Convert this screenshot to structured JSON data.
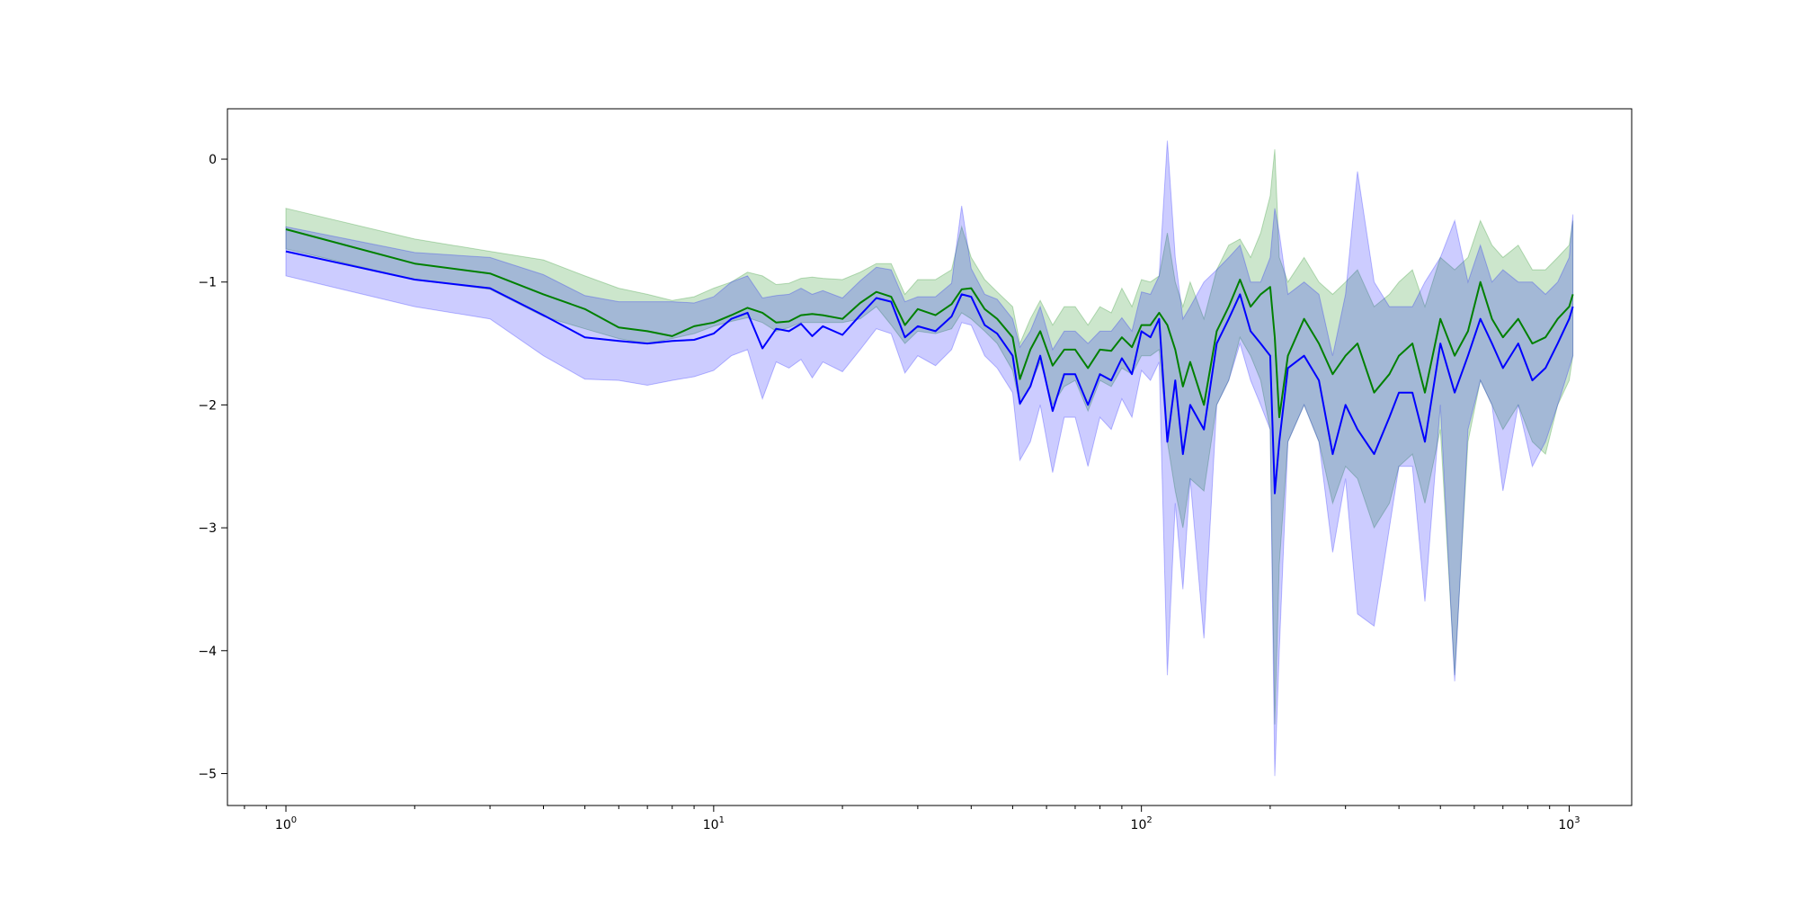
{
  "chart_data": {
    "type": "line",
    "title": "",
    "xlabel": "",
    "ylabel": "",
    "x_scale": "log",
    "xlim": [
      0.73,
      1400
    ],
    "ylim": [
      -5.26,
      0.41
    ],
    "grid": false,
    "legend": "none",
    "x_ticks": [
      {
        "value": 1,
        "mantissa": "10",
        "exponent": "0"
      },
      {
        "value": 10,
        "mantissa": "10",
        "exponent": "1"
      },
      {
        "value": 100,
        "mantissa": "10",
        "exponent": "2"
      },
      {
        "value": 1000,
        "mantissa": "10",
        "exponent": "3"
      }
    ],
    "y_ticks": [
      {
        "value": 0,
        "label": "0"
      },
      {
        "value": -1,
        "label": "−1"
      },
      {
        "value": -2,
        "label": "−2"
      },
      {
        "value": -3,
        "label": "−3"
      },
      {
        "value": -4,
        "label": "−4"
      },
      {
        "value": -5,
        "label": "−5"
      }
    ],
    "series": [
      {
        "color": "#008000",
        "band_color": "#008000",
        "band_opacity": 0.2,
        "x": [
          1,
          2,
          3,
          4,
          5,
          6,
          7,
          8,
          9,
          10,
          11,
          12,
          13,
          14,
          15,
          16,
          17,
          18,
          20,
          22,
          24,
          26,
          28,
          30,
          33,
          36,
          38,
          40,
          43,
          46,
          50,
          52,
          55,
          58,
          62,
          66,
          70,
          75,
          80,
          85,
          90,
          95,
          100,
          105,
          110,
          115,
          120,
          125,
          130,
          140,
          150,
          160,
          170,
          180,
          190,
          200,
          205,
          210,
          220,
          240,
          260,
          280,
          300,
          320,
          350,
          380,
          400,
          430,
          460,
          500,
          540,
          580,
          620,
          660,
          700,
          760,
          820,
          880,
          940,
          1000,
          1020
        ],
        "values": [
          -0.57,
          -0.85,
          -0.93,
          -1.1,
          -1.22,
          -1.37,
          -1.4,
          -1.44,
          -1.36,
          -1.33,
          -1.27,
          -1.21,
          -1.25,
          -1.33,
          -1.32,
          -1.27,
          -1.26,
          -1.27,
          -1.3,
          -1.17,
          -1.08,
          -1.12,
          -1.35,
          -1.22,
          -1.27,
          -1.18,
          -1.06,
          -1.05,
          -1.22,
          -1.3,
          -1.45,
          -1.79,
          -1.55,
          -1.4,
          -1.68,
          -1.55,
          -1.55,
          -1.7,
          -1.55,
          -1.56,
          -1.45,
          -1.53,
          -1.35,
          -1.35,
          -1.25,
          -1.35,
          -1.55,
          -1.85,
          -1.65,
          -2.0,
          -1.4,
          -1.2,
          -0.98,
          -1.2,
          -1.1,
          -1.04,
          -1.45,
          -2.1,
          -1.6,
          -1.3,
          -1.5,
          -1.75,
          -1.6,
          -1.5,
          -1.9,
          -1.75,
          -1.6,
          -1.5,
          -1.9,
          -1.3,
          -1.6,
          -1.4,
          -1.0,
          -1.3,
          -1.45,
          -1.3,
          -1.5,
          -1.45,
          -1.3,
          -1.2,
          -1.1
        ],
        "lower": [
          -0.73,
          -0.98,
          -1.06,
          -1.28,
          -1.38,
          -1.46,
          -1.5,
          -1.46,
          -1.42,
          -1.36,
          -1.32,
          -1.29,
          -1.33,
          -1.4,
          -1.37,
          -1.33,
          -1.33,
          -1.33,
          -1.33,
          -1.3,
          -1.2,
          -1.35,
          -1.5,
          -1.4,
          -1.42,
          -1.38,
          -1.25,
          -1.3,
          -1.4,
          -1.5,
          -1.72,
          -2.0,
          -1.84,
          -1.65,
          -2.0,
          -1.85,
          -1.8,
          -2.05,
          -1.8,
          -1.85,
          -1.7,
          -1.75,
          -1.6,
          -1.6,
          -1.55,
          -2.3,
          -2.7,
          -3.0,
          -2.6,
          -2.7,
          -2.0,
          -1.8,
          -1.45,
          -1.6,
          -1.8,
          -2.2,
          -4.6,
          -3.3,
          -2.3,
          -2.0,
          -2.3,
          -2.8,
          -2.5,
          -2.6,
          -3.0,
          -2.8,
          -2.5,
          -2.4,
          -2.8,
          -2.2,
          -4.2,
          -2.3,
          -1.8,
          -2.0,
          -2.2,
          -2.0,
          -2.3,
          -2.4,
          -2.0,
          -1.8,
          -1.6
        ],
        "upper": [
          -0.4,
          -0.65,
          -0.75,
          -0.82,
          -0.95,
          -1.05,
          -1.1,
          -1.15,
          -1.12,
          -1.05,
          -1.0,
          -0.92,
          -0.95,
          -1.02,
          -1.01,
          -0.97,
          -0.96,
          -0.97,
          -0.98,
          -0.92,
          -0.85,
          -0.85,
          -1.1,
          -0.98,
          -0.98,
          -0.9,
          -0.55,
          -0.8,
          -0.98,
          -1.08,
          -1.2,
          -1.5,
          -1.3,
          -1.15,
          -1.35,
          -1.2,
          -1.2,
          -1.35,
          -1.2,
          -1.25,
          -1.05,
          -1.2,
          -0.98,
          -1.0,
          -0.95,
          -0.6,
          -1.0,
          -1.2,
          -1.0,
          -1.3,
          -0.9,
          -0.7,
          -0.65,
          -0.8,
          -0.6,
          -0.3,
          0.08,
          -0.8,
          -1.0,
          -0.8,
          -1.0,
          -1.1,
          -1.0,
          -0.9,
          -1.2,
          -1.1,
          -1.0,
          -0.9,
          -1.2,
          -0.8,
          -0.9,
          -0.8,
          -0.5,
          -0.7,
          -0.8,
          -0.7,
          -0.9,
          -0.9,
          -0.8,
          -0.7,
          -0.5
        ]
      },
      {
        "color": "#0000ff",
        "band_color": "#0000ff",
        "band_opacity": 0.2,
        "x": [
          1,
          2,
          3,
          4,
          5,
          6,
          7,
          8,
          9,
          10,
          11,
          12,
          13,
          14,
          15,
          16,
          17,
          18,
          20,
          22,
          24,
          26,
          28,
          30,
          33,
          36,
          38,
          40,
          43,
          46,
          50,
          52,
          55,
          58,
          62,
          66,
          70,
          75,
          80,
          85,
          90,
          95,
          100,
          105,
          110,
          115,
          120,
          125,
          130,
          140,
          150,
          160,
          170,
          180,
          190,
          200,
          205,
          210,
          220,
          240,
          260,
          280,
          300,
          320,
          350,
          380,
          400,
          430,
          460,
          500,
          540,
          580,
          620,
          660,
          700,
          760,
          820,
          880,
          940,
          1000,
          1020
        ],
        "values": [
          -0.75,
          -0.98,
          -1.05,
          -1.27,
          -1.45,
          -1.48,
          -1.5,
          -1.48,
          -1.47,
          -1.42,
          -1.3,
          -1.25,
          -1.54,
          -1.38,
          -1.4,
          -1.34,
          -1.44,
          -1.36,
          -1.43,
          -1.27,
          -1.13,
          -1.16,
          -1.45,
          -1.36,
          -1.4,
          -1.28,
          -1.1,
          -1.12,
          -1.35,
          -1.42,
          -1.6,
          -1.99,
          -1.85,
          -1.6,
          -2.05,
          -1.75,
          -1.75,
          -2.0,
          -1.75,
          -1.8,
          -1.62,
          -1.75,
          -1.4,
          -1.45,
          -1.3,
          -2.3,
          -1.8,
          -2.4,
          -2.0,
          -2.2,
          -1.5,
          -1.3,
          -1.1,
          -1.4,
          -1.5,
          -1.6,
          -2.72,
          -2.3,
          -1.7,
          -1.6,
          -1.8,
          -2.4,
          -2.0,
          -2.2,
          -2.4,
          -2.1,
          -1.9,
          -1.9,
          -2.3,
          -1.5,
          -1.9,
          -1.6,
          -1.3,
          -1.5,
          -1.7,
          -1.5,
          -1.8,
          -1.7,
          -1.5,
          -1.3,
          -1.2
        ],
        "lower": [
          -0.95,
          -1.2,
          -1.3,
          -1.6,
          -1.79,
          -1.8,
          -1.84,
          -1.8,
          -1.77,
          -1.72,
          -1.6,
          -1.55,
          -1.95,
          -1.65,
          -1.7,
          -1.63,
          -1.78,
          -1.65,
          -1.73,
          -1.55,
          -1.38,
          -1.42,
          -1.74,
          -1.6,
          -1.68,
          -1.55,
          -1.33,
          -1.35,
          -1.6,
          -1.7,
          -1.9,
          -2.45,
          -2.3,
          -2.0,
          -2.55,
          -2.1,
          -2.1,
          -2.5,
          -2.1,
          -2.2,
          -1.95,
          -2.1,
          -1.72,
          -1.8,
          -1.65,
          -4.2,
          -2.8,
          -3.5,
          -2.6,
          -3.9,
          -2.0,
          -1.8,
          -1.5,
          -1.8,
          -2.0,
          -2.2,
          -5.02,
          -4.0,
          -2.3,
          -2.0,
          -2.3,
          -3.2,
          -2.6,
          -3.7,
          -3.8,
          -3.0,
          -2.5,
          -2.5,
          -3.6,
          -2.0,
          -4.25,
          -2.2,
          -1.8,
          -2.0,
          -2.7,
          -2.0,
          -2.5,
          -2.3,
          -2.0,
          -1.7,
          -1.6
        ],
        "upper": [
          -0.55,
          -0.76,
          -0.8,
          -0.94,
          -1.11,
          -1.16,
          -1.16,
          -1.16,
          -1.17,
          -1.12,
          -1.0,
          -0.95,
          -1.13,
          -1.11,
          -1.1,
          -1.05,
          -1.1,
          -1.07,
          -1.13,
          -0.99,
          -0.88,
          -0.9,
          -1.16,
          -1.12,
          -1.12,
          -1.01,
          -0.38,
          -0.89,
          -1.1,
          -1.14,
          -1.3,
          -1.53,
          -1.4,
          -1.2,
          -1.55,
          -1.4,
          -1.4,
          -1.5,
          -1.4,
          -1.4,
          -1.29,
          -1.4,
          -1.08,
          -1.1,
          -0.95,
          0.15,
          -0.8,
          -1.3,
          -1.2,
          -1.0,
          -0.9,
          -0.8,
          -0.7,
          -1.0,
          -1.0,
          -0.8,
          -0.4,
          -0.6,
          -1.1,
          -1.0,
          -1.1,
          -1.6,
          -1.1,
          -0.1,
          -1.0,
          -1.2,
          -1.2,
          -1.2,
          -1.0,
          -0.8,
          -0.5,
          -1.0,
          -0.7,
          -1.0,
          -0.9,
          -1.0,
          -1.0,
          -1.1,
          -1.0,
          -0.8,
          -0.45
        ]
      }
    ]
  }
}
